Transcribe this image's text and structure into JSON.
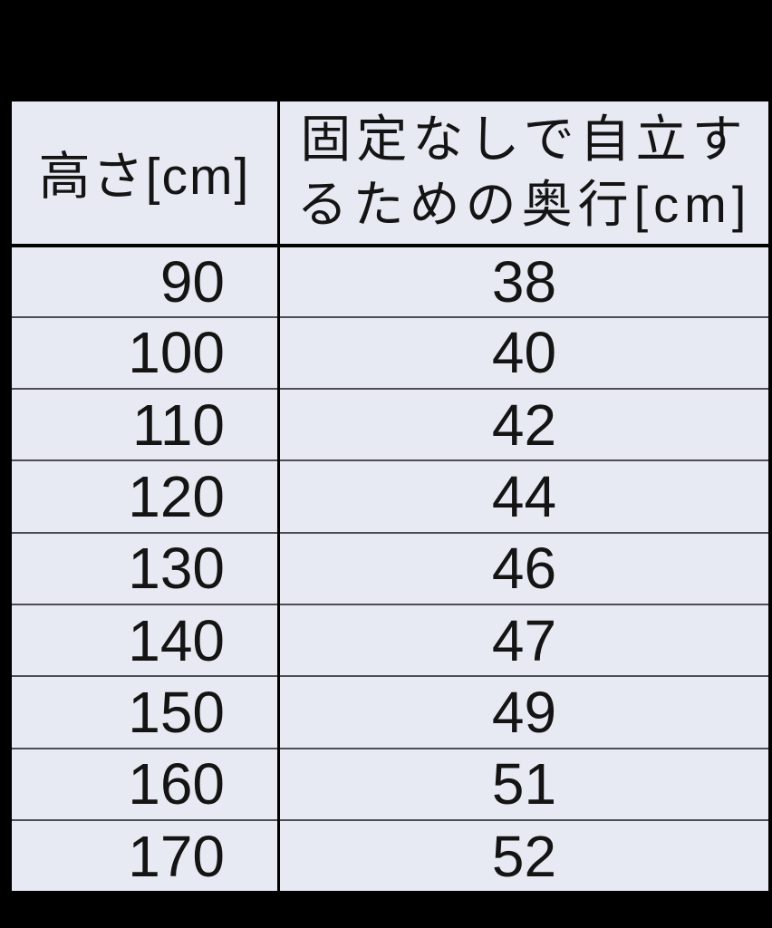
{
  "page": {
    "background_color": "#000000"
  },
  "table": {
    "colors": {
      "cell_background": "#e8eaf3",
      "text": "#141414",
      "outer_border": "#000000",
      "column_divider": "#000000",
      "header_divider": "#000000",
      "row_divider": "#4d4d55"
    },
    "columns": [
      {
        "header": "高さ[cm]"
      },
      {
        "header": "固定なしで自立するための奥行[cm]",
        "header_lines": [
          "固定なしで自立す",
          "るための奥行[cm]"
        ]
      }
    ],
    "rows": [
      {
        "height": "90",
        "depth": "38"
      },
      {
        "height": "100",
        "depth": "40"
      },
      {
        "height": "110",
        "depth": "42"
      },
      {
        "height": "120",
        "depth": "44"
      },
      {
        "height": "130",
        "depth": "46"
      },
      {
        "height": "140",
        "depth": "47"
      },
      {
        "height": "150",
        "depth": "49"
      },
      {
        "height": "160",
        "depth": "51"
      },
      {
        "height": "170",
        "depth": "52"
      }
    ]
  },
  "chart_data": {
    "type": "table",
    "title": "",
    "columns": [
      "高さ[cm]",
      "固定なしで自立するための奥行[cm]"
    ],
    "rows": [
      [
        90,
        38
      ],
      [
        100,
        40
      ],
      [
        110,
        42
      ],
      [
        120,
        44
      ],
      [
        130,
        46
      ],
      [
        140,
        47
      ],
      [
        150,
        49
      ],
      [
        160,
        51
      ],
      [
        170,
        52
      ]
    ]
  }
}
